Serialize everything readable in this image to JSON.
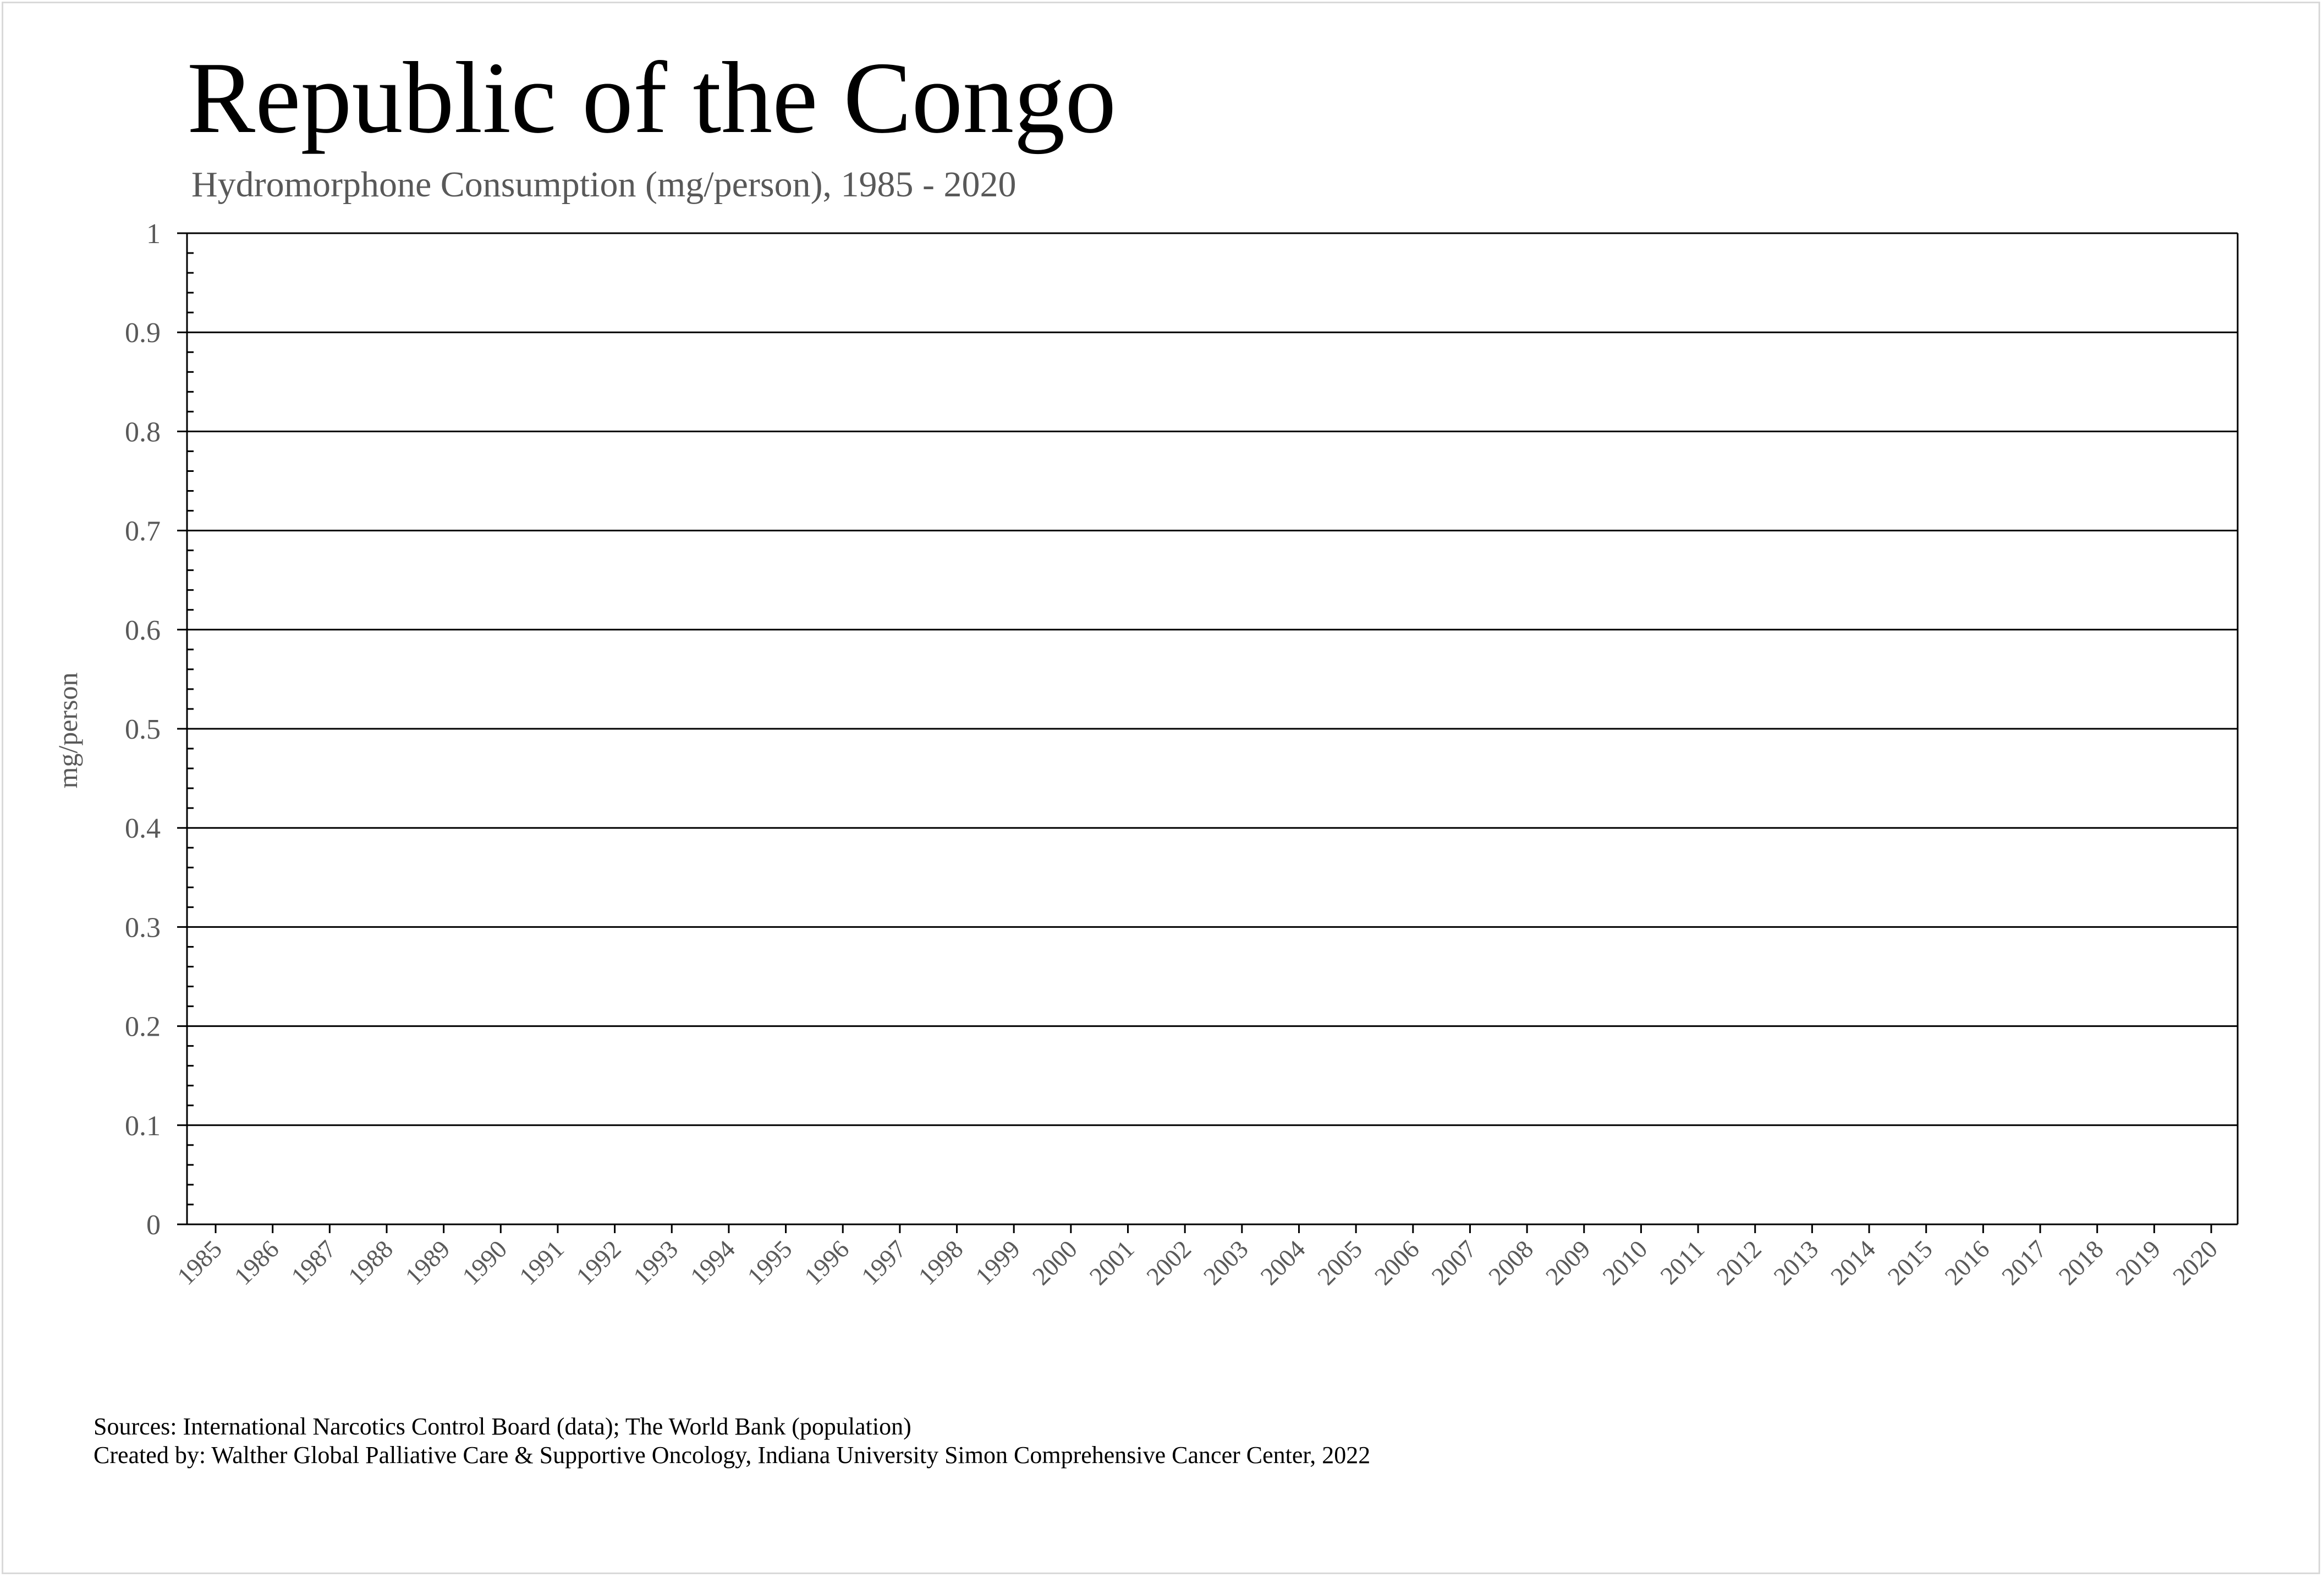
{
  "chart_data": {
    "type": "line",
    "title": "Republic of the Congo",
    "subtitle": "Hydromorphone Consumption (mg/person), 1985 - 2020",
    "ylabel": "mg/person",
    "xlabel": "",
    "ylim": [
      0,
      1
    ],
    "yticks": [
      "0",
      "0.1",
      "0.2",
      "0.3",
      "0.4",
      "0.5",
      "0.6",
      "0.7",
      "0.8",
      "0.9",
      "1"
    ],
    "categories": [
      "1985",
      "1986",
      "1987",
      "1988",
      "1989",
      "1990",
      "1991",
      "1992",
      "1993",
      "1994",
      "1995",
      "1996",
      "1997",
      "1998",
      "1999",
      "2000",
      "2001",
      "2002",
      "2003",
      "2004",
      "2005",
      "2006",
      "2007",
      "2008",
      "2009",
      "2010",
      "2011",
      "2012",
      "2013",
      "2014",
      "2015",
      "2016",
      "2017",
      "2018",
      "2019",
      "2020"
    ],
    "series": [],
    "grid": true,
    "legend": "none"
  },
  "footer": {
    "sources": "Sources: International Narcotics Control Board (data); The World Bank (population)",
    "created_by": "Created by: Walther Global Palliative Care & Supportive Oncology, Indiana University Simon Comprehensive Cancer Center, 2022"
  },
  "colors": {
    "title": "#000000",
    "subtitle": "#595959",
    "axis_text": "#595959",
    "gridline": "#000000"
  }
}
